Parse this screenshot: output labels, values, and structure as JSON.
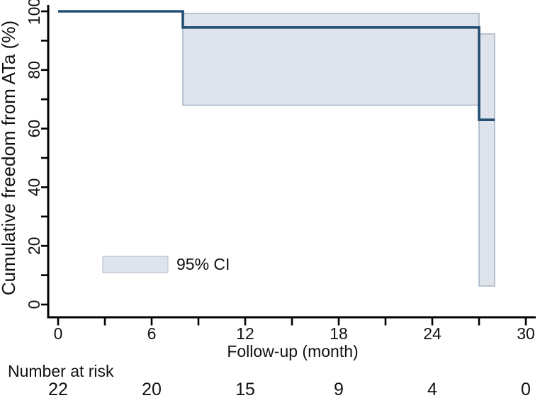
{
  "chart_data": {
    "type": "line",
    "subtype": "kaplan-meier-step-curve",
    "title": "",
    "xlabel": "Follow-up (month)",
    "ylabel": "Cumulative freedom from ATa (%)",
    "xlim": [
      0,
      30
    ],
    "ylim": [
      0,
      100
    ],
    "grid": "off",
    "x_major_ticks": [
      0,
      6,
      12,
      18,
      24,
      30
    ],
    "x_minor_ticks": [
      3,
      9,
      15,
      21,
      27
    ],
    "y_major_ticks": [
      0,
      20,
      40,
      60,
      80,
      100
    ],
    "y_minor_ticks": [
      10,
      30,
      50,
      70,
      90
    ],
    "legend": {
      "label": "95% CI",
      "position": "inside-lower-left"
    },
    "series": [
      {
        "name": "Cumulative freedom from ATa",
        "step_points": [
          {
            "t": 0,
            "survival_pct": 100
          },
          {
            "t": 8,
            "survival_pct": 94.5
          },
          {
            "t": 27,
            "survival_pct": 63
          }
        ],
        "end_t": 28
      }
    ],
    "ci_bands": [
      {
        "t_start": 8,
        "t_end": 27,
        "upper_pct": 99.3,
        "lower_pct": 68
      },
      {
        "t_start": 27,
        "t_end": 28,
        "upper_pct": 92.3,
        "lower_pct": 6.3
      }
    ],
    "number_at_risk": {
      "label": "Number at risk",
      "times": [
        0,
        6,
        12,
        18,
        24,
        30
      ],
      "values": [
        22,
        20,
        15,
        9,
        4,
        0
      ]
    },
    "colors": {
      "curve": "#224e73",
      "ci_fill": "#dfe4ec",
      "ci_edge": "#a3aebf",
      "axis": "#000000",
      "text": "#111111",
      "background": "#ffffff"
    }
  }
}
